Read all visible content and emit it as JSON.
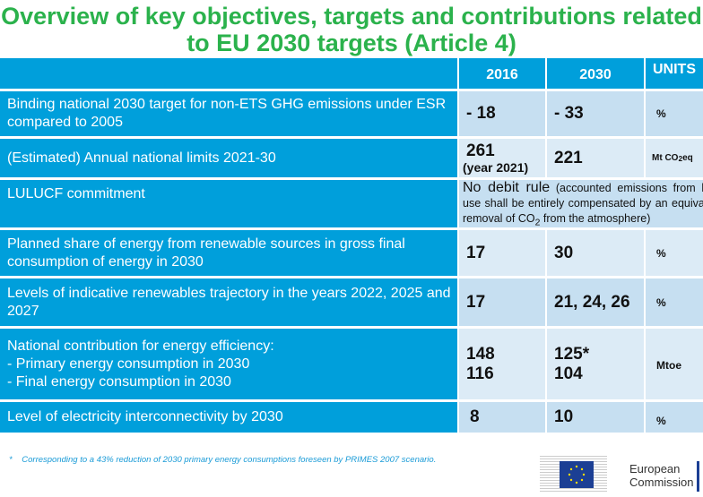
{
  "title": "Overview of key objectives, targets and contributions related to EU 2030 targets (Article 4)",
  "header": {
    "col1": "2016",
    "col2": "2030",
    "units": "UNITS"
  },
  "rows": [
    {
      "label": "Binding national 2030 target for non-ETS GHG emissions under ESR compared to 2005",
      "v2016": "- 18",
      "v2030": "- 33",
      "unit": "%"
    },
    {
      "label": "(Estimated) Annual national limits 2021-30",
      "v2016": "261",
      "v2016_note": "(year 2021)",
      "v2030": "221",
      "unit": "Mt CO",
      "unit_sub": "2",
      "unit_suffix": "eq"
    },
    {
      "label": "LULUCF commitment",
      "merged_main": "No debit rule",
      "merged_rest": " (accounted emissions from land use shall be entirely compensated by an equivalent removal of CO",
      "merged_sub": "2",
      "merged_end": " from the atmosphere)"
    },
    {
      "label": "Planned share of energy from renewable sources in gross final consumption of energy in 2030",
      "v2016": "17",
      "v2030": "30",
      "unit": "%"
    },
    {
      "label": "Levels of indicative renewables trajectory in the years 2022, 2025 and 2027",
      "v2016": "17",
      "v2030": "21, 24, 26",
      "unit": "%"
    },
    {
      "label_lines": [
        "National contribution for energy efficiency:",
        "- Primary energy consumption in 2030",
        "- Final energy consumption in 2030"
      ],
      "v2016": [
        "148",
        "116"
      ],
      "v2030": [
        "125*",
        "104"
      ],
      "unit": "Mtoe"
    },
    {
      "label": "Level of electricity interconnectivity by 2030",
      "v2016": "8",
      "v2030": "10",
      "unit": "%"
    }
  ],
  "footnote": {
    "mark": "*",
    "text": "Corresponding to a 43% reduction of 2030 primary energy consumptions foreseen by PRIMES 2007 scenario."
  },
  "logo": {
    "line1": "European",
    "line2": "Commission"
  }
}
